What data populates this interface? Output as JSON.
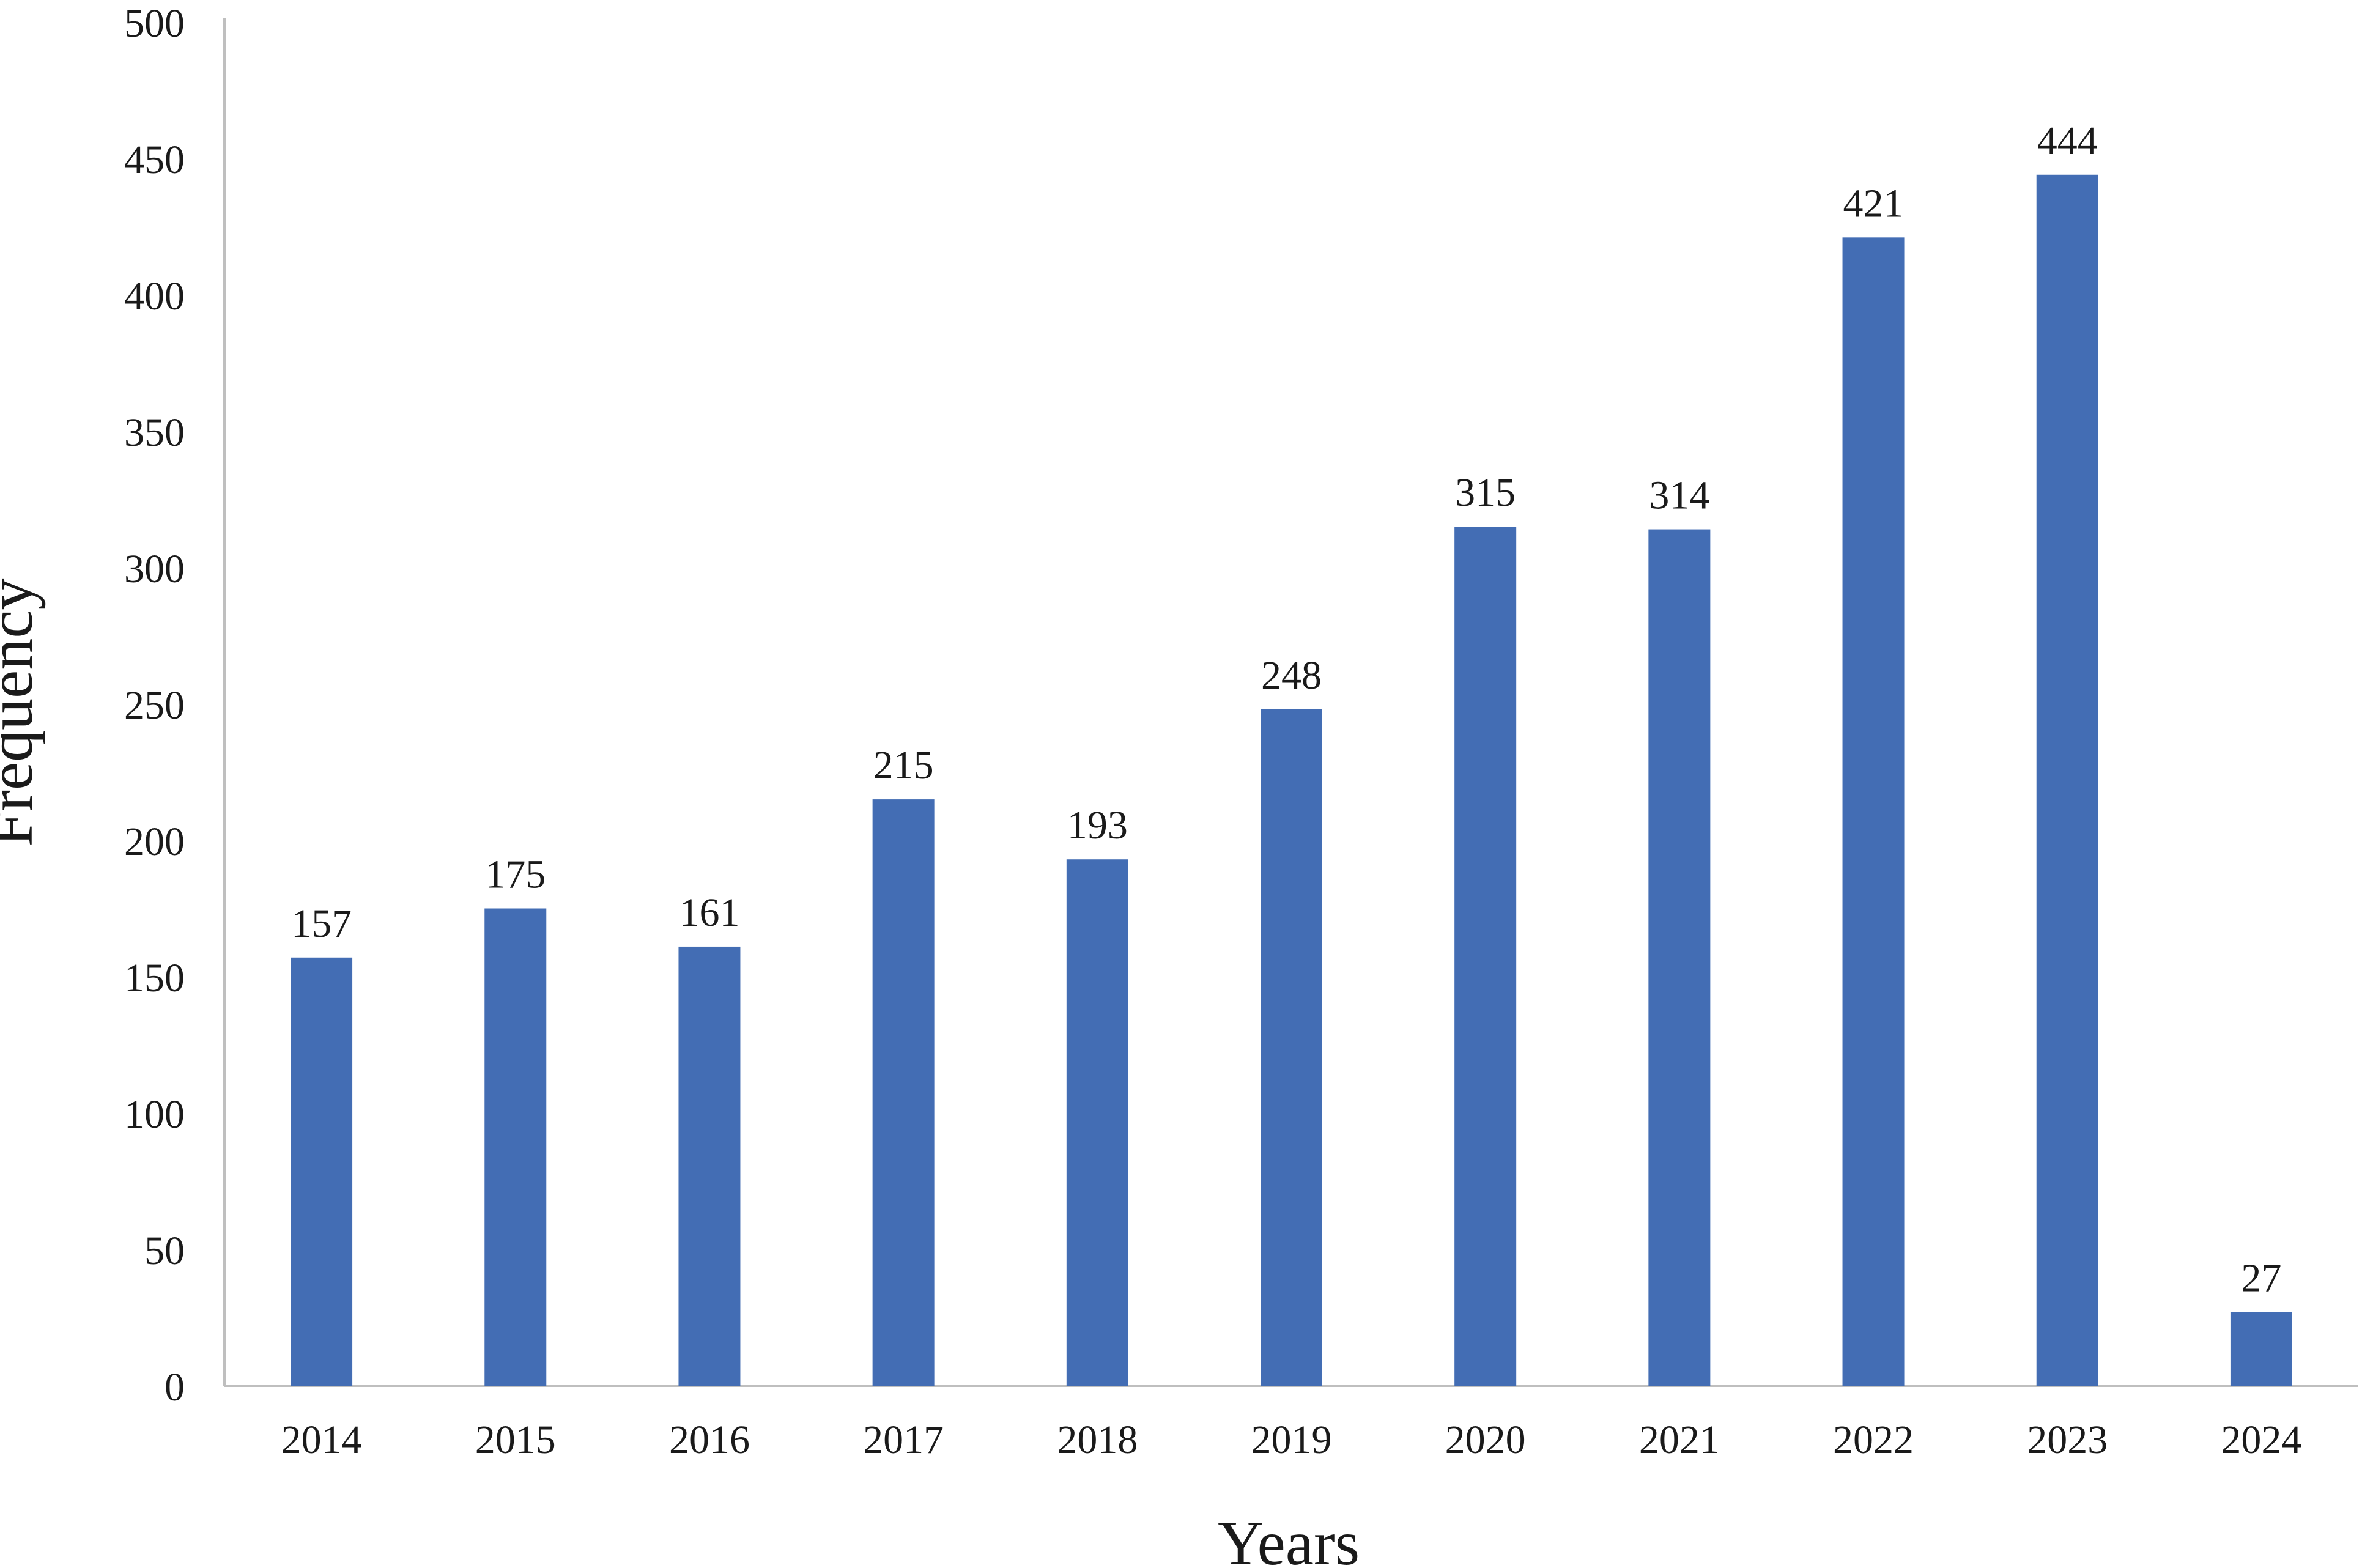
{
  "chart_data": {
    "type": "bar",
    "title": "",
    "xlabel": "Years",
    "ylabel": "Frequency",
    "categories": [
      "2014",
      "2015",
      "2016",
      "2017",
      "2018",
      "2019",
      "2020",
      "2021",
      "2022",
      "2023",
      "2024"
    ],
    "values": [
      157,
      175,
      161,
      215,
      193,
      248,
      315,
      314,
      421,
      444,
      27
    ],
    "ylim": [
      0,
      500
    ],
    "yticks": [
      0,
      50,
      100,
      150,
      200,
      250,
      300,
      350,
      400,
      450,
      500
    ],
    "grid": false,
    "legend": "none",
    "data_labels": true,
    "colors": {
      "bar": "#436DB4",
      "axis": "#BFBFBF",
      "text": "#1a1a1a"
    }
  }
}
